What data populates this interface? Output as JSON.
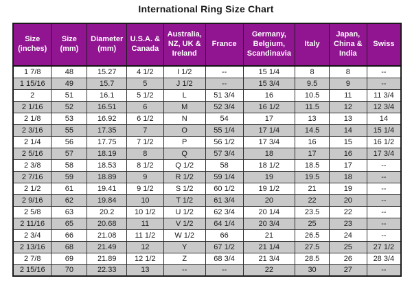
{
  "title": "International Ring Size Chart",
  "colors": {
    "header_bg": "#911591",
    "header_text": "#ffffff",
    "row_bg": "#ffffff",
    "row_alt_bg": "#c9c9c9",
    "grid_line": "#2e2e2e",
    "text": "#1c1c1c"
  },
  "chart_data": {
    "type": "table",
    "title": "International Ring Size Chart",
    "columns": [
      "Size (inches)",
      "Size (mm)",
      "Diameter (mm)",
      "U.S.A. & Canada",
      "Australia, NZ, UK & Ireland",
      "France",
      "Germany, Belgium, Scandinavia",
      "Italy",
      "Japan, China & India",
      "Swiss"
    ],
    "rows": [
      [
        "1 7/8",
        "48",
        "15.27",
        "4 1/2",
        "I 1/2",
        "--",
        "15 1/4",
        "8",
        "8",
        "--"
      ],
      [
        "1 15/16",
        "49",
        "15.7",
        "5",
        "J 1/2",
        "--",
        "15 3/4",
        "9.5",
        "9",
        "--"
      ],
      [
        "2",
        "51",
        "16.1",
        "5 1/2",
        "L",
        "51 3/4",
        "16",
        "10.5",
        "11",
        "11 3/4"
      ],
      [
        "2 1/16",
        "52",
        "16.51",
        "6",
        "M",
        "52 3/4",
        "16 1/2",
        "11.5",
        "12",
        "12 3/4"
      ],
      [
        "2 1/8",
        "53",
        "16.92",
        "6 1/2",
        "N",
        "54",
        "17",
        "13",
        "13",
        "14"
      ],
      [
        "2 3/16",
        "55",
        "17.35",
        "7",
        "O",
        "55 1/4",
        "17 1/4",
        "14.5",
        "14",
        "15 1/4"
      ],
      [
        "2 1/4",
        "56",
        "17.75",
        "7 1/2",
        "P",
        "56 1/2",
        "17 3/4",
        "16",
        "15",
        "16 1/2"
      ],
      [
        "2 5/16",
        "57",
        "18.19",
        "8",
        "Q",
        "57 3/4",
        "18",
        "17",
        "16",
        "17 3/4"
      ],
      [
        "2 3/8",
        "58",
        "18.53",
        "8 1/2",
        "Q 1/2",
        "58",
        "18 1/2",
        "18.5",
        "17",
        "--"
      ],
      [
        "2 7/16",
        "59",
        "18.89",
        "9",
        "R 1/2",
        "59 1/4",
        "19",
        "19.5",
        "18",
        "--"
      ],
      [
        "2 1/2",
        "61",
        "19.41",
        "9 1/2",
        "S 1/2",
        "60 1/2",
        "19 1/2",
        "21",
        "19",
        "--"
      ],
      [
        "2 9/16",
        "62",
        "19.84",
        "10",
        "T 1/2",
        "61 3/4",
        "20",
        "22",
        "20",
        "--"
      ],
      [
        "2 5/8",
        "63",
        "20.2",
        "10 1/2",
        "U 1/2",
        "62 3/4",
        "20 1/4",
        "23.5",
        "22",
        "--"
      ],
      [
        "2 11/16",
        "65",
        "20.68",
        "11",
        "V 1/2",
        "64 1/4",
        "20 3/4",
        "25",
        "23",
        "--"
      ],
      [
        "2 3/4",
        "66",
        "21.08",
        "11 1/2",
        "W 1/2",
        "66",
        "21",
        "26.5",
        "24",
        "--"
      ],
      [
        "2 13/16",
        "68",
        "21.49",
        "12",
        "Y",
        "67 1/2",
        "21 1/4",
        "27.5",
        "25",
        "27 1/2"
      ],
      [
        "2 7/8",
        "69",
        "21.89",
        "12 1/2",
        "Z",
        "68 3/4",
        "21 3/4",
        "28.5",
        "26",
        "28 3/4"
      ],
      [
        "2 15/16",
        "70",
        "22.33",
        "13",
        "--",
        "--",
        "22",
        "30",
        "27",
        "--"
      ]
    ],
    "layout": {
      "column_width_percents": [
        9.9,
        9.2,
        10.2,
        9.5,
        10.8,
        9.7,
        13.4,
        8.8,
        9.7,
        8.8
      ],
      "alternating_rows": true
    }
  }
}
